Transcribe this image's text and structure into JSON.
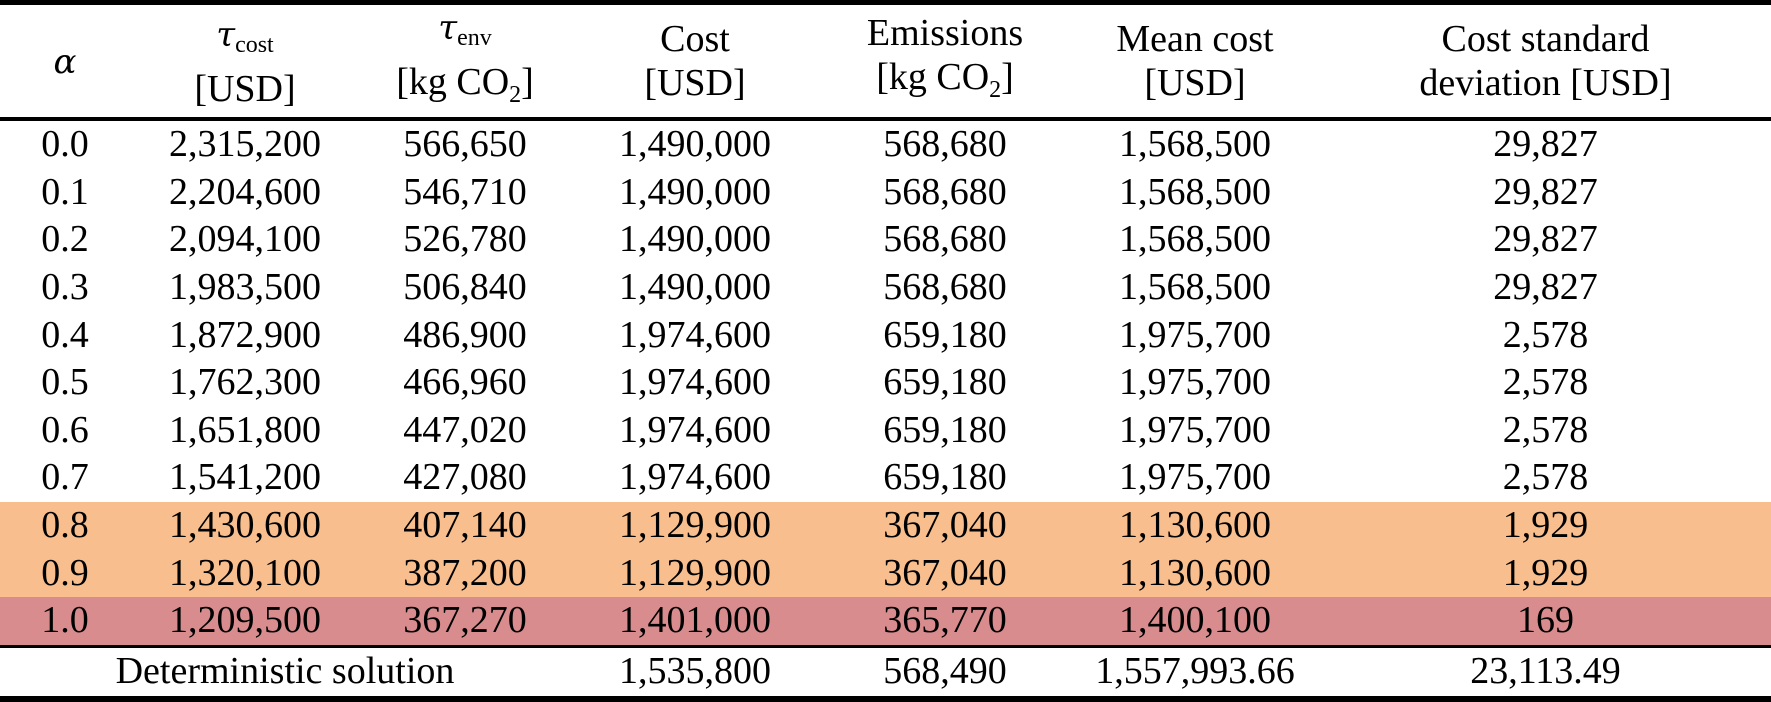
{
  "header": {
    "alpha_symbol": "α",
    "tau_cost": {
      "symbol": "τ",
      "sub": "cost",
      "unit": "[USD]"
    },
    "tau_env": {
      "symbol": "τ",
      "sub": "env",
      "unit_pre": "[kg CO",
      "unit_sub": "2",
      "unit_post": "]"
    },
    "cost": {
      "line1": "Cost",
      "line2": "[USD]"
    },
    "emissions": {
      "line1": "Emissions",
      "unit_pre": "[kg CO",
      "unit_sub": "2",
      "unit_post": "]"
    },
    "mean_cost": {
      "line1": "Mean cost",
      "line2": "[USD]"
    },
    "cost_std": {
      "line1": "Cost standard",
      "line2": "deviation [USD]"
    }
  },
  "rows": [
    {
      "alpha": "0.0",
      "tau_cost": "2,315,200",
      "tau_env": "566,650",
      "cost": "1,490,000",
      "emissions": "568,680",
      "mean_cost": "1,568,500",
      "std": "29,827"
    },
    {
      "alpha": "0.1",
      "tau_cost": "2,204,600",
      "tau_env": "546,710",
      "cost": "1,490,000",
      "emissions": "568,680",
      "mean_cost": "1,568,500",
      "std": "29,827"
    },
    {
      "alpha": "0.2",
      "tau_cost": "2,094,100",
      "tau_env": "526,780",
      "cost": "1,490,000",
      "emissions": "568,680",
      "mean_cost": "1,568,500",
      "std": "29,827"
    },
    {
      "alpha": "0.3",
      "tau_cost": "1,983,500",
      "tau_env": "506,840",
      "cost": "1,490,000",
      "emissions": "568,680",
      "mean_cost": "1,568,500",
      "std": "29,827"
    },
    {
      "alpha": "0.4",
      "tau_cost": "1,872,900",
      "tau_env": "486,900",
      "cost": "1,974,600",
      "emissions": "659,180",
      "mean_cost": "1,975,700",
      "std": "2,578"
    },
    {
      "alpha": "0.5",
      "tau_cost": "1,762,300",
      "tau_env": "466,960",
      "cost": "1,974,600",
      "emissions": "659,180",
      "mean_cost": "1,975,700",
      "std": "2,578"
    },
    {
      "alpha": "0.6",
      "tau_cost": "1,651,800",
      "tau_env": "447,020",
      "cost": "1,974,600",
      "emissions": "659,180",
      "mean_cost": "1,975,700",
      "std": "2,578"
    },
    {
      "alpha": "0.7",
      "tau_cost": "1,541,200",
      "tau_env": "427,080",
      "cost": "1,974,600",
      "emissions": "659,180",
      "mean_cost": "1,975,700",
      "std": "2,578"
    },
    {
      "alpha": "0.8",
      "tau_cost": "1,430,600",
      "tau_env": "407,140",
      "cost": "1,129,900",
      "emissions": "367,040",
      "mean_cost": "1,130,600",
      "std": "1,929"
    },
    {
      "alpha": "0.9",
      "tau_cost": "1,320,100",
      "tau_env": "387,200",
      "cost": "1,129,900",
      "emissions": "367,040",
      "mean_cost": "1,130,600",
      "std": "1,929"
    },
    {
      "alpha": "1.0",
      "tau_cost": "1,209,500",
      "tau_env": "367,270",
      "cost": "1,401,000",
      "emissions": "365,770",
      "mean_cost": "1,400,100",
      "std": "169"
    }
  ],
  "deterministic": {
    "label": "Deterministic solution",
    "cost": "1,535,800",
    "emissions": "568,490",
    "mean_cost": "1,557,993.66",
    "std": "23,113.49"
  },
  "colors": {
    "highlight_orange": "#f8be8d",
    "highlight_red": "#d88c8e"
  }
}
